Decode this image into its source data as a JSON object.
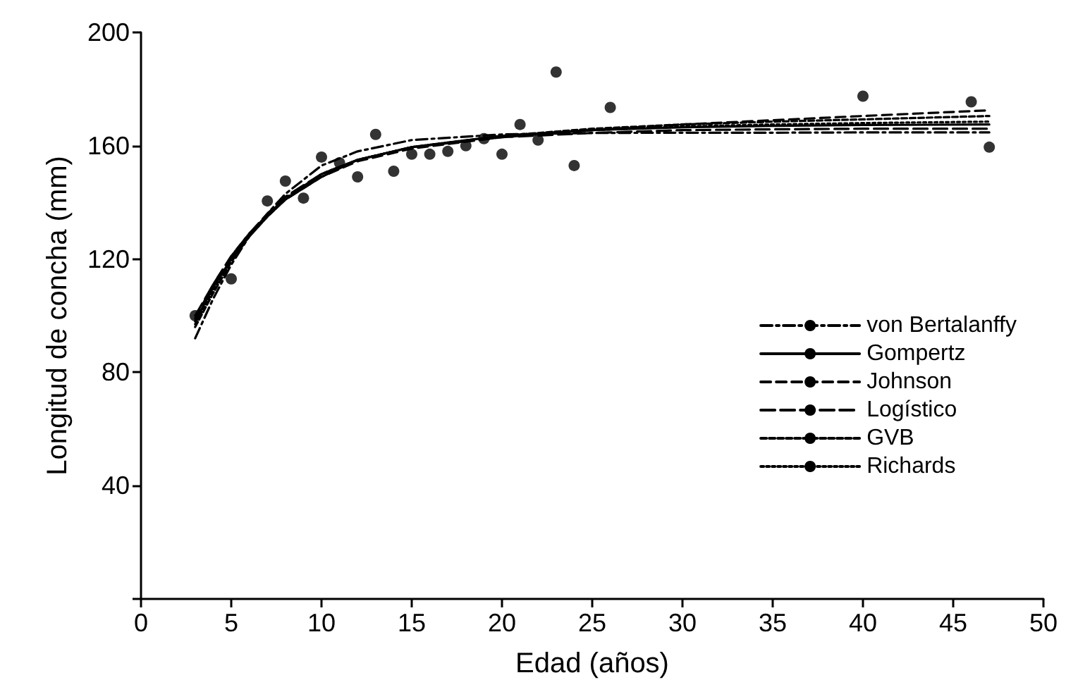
{
  "chart_data": {
    "type": "line",
    "xlabel": "Edad (años)",
    "ylabel": "Longitud de concha (mm)",
    "xlim": [
      0,
      50
    ],
    "xticks": [
      0,
      5,
      10,
      15,
      20,
      25,
      30,
      35,
      40,
      45,
      50
    ],
    "ylim": [
      0,
      200
    ],
    "yticks": [
      {
        "value": 0,
        "label": null
      },
      40,
      80,
      120,
      160,
      200
    ],
    "grid": false,
    "legend": "right",
    "marker": "none",
    "x": [
      3,
      4,
      5,
      6,
      7,
      8,
      10,
      12,
      15,
      20,
      25,
      30,
      35,
      40,
      47
    ],
    "series": [
      {
        "type": "scatter",
        "marker": "circle",
        "color": "#000000",
        "x": [
          3,
          5,
          7,
          8,
          9,
          10,
          11,
          12,
          13,
          14,
          15,
          16,
          17,
          18,
          19,
          20,
          21,
          22,
          23,
          24,
          26,
          40,
          46,
          47
        ],
        "values": [
          100,
          113,
          140.5,
          147.5,
          141.5,
          156,
          154,
          149,
          164,
          151,
          157,
          157,
          158,
          160,
          162.5,
          157,
          167.5,
          162,
          186,
          153,
          173.5,
          177.5,
          175.5,
          159.5
        ]
      },
      {
        "name": "von Bertalanffy",
        "color": "#000000",
        "line_style": "dashdot",
        "values": [
          92,
          106,
          118,
          128,
          136,
          143,
          153,
          158,
          162,
          164,
          164.5,
          164.6,
          164.6,
          164.7,
          164.7
        ]
      },
      {
        "name": "Gompertz",
        "color": "#000000",
        "line_style": "solid",
        "values": [
          98,
          110,
          120,
          128,
          135,
          141,
          149,
          155,
          159.5,
          163.5,
          165.5,
          166.5,
          167,
          167.3,
          167.5
        ]
      },
      {
        "name": "Johnson",
        "color": "#000000",
        "line_style": "dashed",
        "values": [
          99,
          111,
          121,
          129,
          135.5,
          141,
          149,
          154.5,
          159,
          163,
          165.5,
          167.5,
          169,
          170.5,
          172.5
        ]
      },
      {
        "name": "Logístico",
        "color": "#000000",
        "line_style": "longdash",
        "values": [
          100,
          111,
          121,
          129,
          136,
          142,
          150,
          155,
          159.5,
          163,
          164.5,
          165.5,
          165.8,
          166,
          166
        ]
      },
      {
        "name": "GVB",
        "color": "#000000",
        "line_style": "shortdash",
        "values": [
          96,
          108,
          119,
          128,
          135,
          141,
          150,
          155,
          159.5,
          163.5,
          166,
          167.5,
          168.5,
          169.3,
          170.5
        ]
      },
      {
        "name": "Richards",
        "color": "#000000",
        "line_style": "dotted",
        "values": [
          97,
          109,
          120,
          128,
          135.5,
          141.5,
          150,
          155,
          159.5,
          163.5,
          165.5,
          166.8,
          167.5,
          168,
          168.5
        ]
      }
    ]
  }
}
